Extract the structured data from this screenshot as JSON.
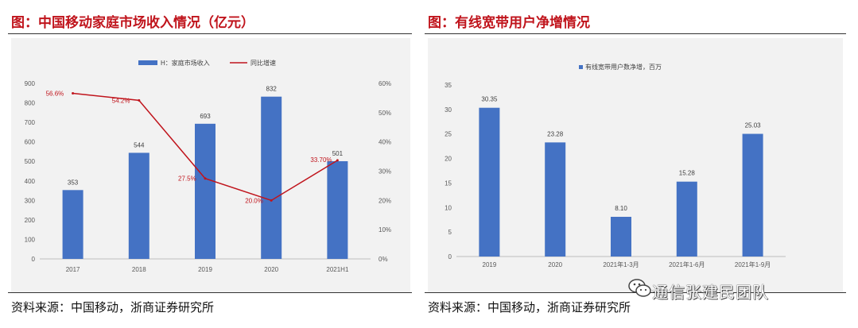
{
  "left": {
    "title": "图：中国移动家庭市场收入情况（亿元）",
    "source": "资料来源：中国移动，浙商证券研究所"
  },
  "right": {
    "title": "图：有线宽带用户净增情况",
    "source": "资料来源：中国移动，浙商证券研究所"
  },
  "watermark": {
    "text": "通信张建民团队",
    "icon": "wechat-icon"
  },
  "colors": {
    "bar": "#4472c4",
    "line": "#c0141c",
    "title": "#c0141c",
    "frame": "#f2f2f2"
  },
  "chart_data": [
    {
      "type": "bar",
      "categories": [
        "2017",
        "2018",
        "2019",
        "2020",
        "2021H1"
      ],
      "series": [
        {
          "name": "H：家庭市场收入",
          "values": [
            353,
            544,
            693,
            832,
            501
          ],
          "labels": [
            "353",
            "544",
            "693",
            "832",
            "501"
          ],
          "axis": "left"
        },
        {
          "name": "同比增速",
          "type": "line",
          "values": [
            56.6,
            54.2,
            27.5,
            20.0,
            33.7
          ],
          "labels": [
            "56.6%",
            "54.2%",
            "27.5%",
            "20.0%",
            "33.70%"
          ],
          "axis": "right"
        }
      ],
      "ylim": [
        0,
        900
      ],
      "yticks": [
        "0",
        "100",
        "200",
        "300",
        "400",
        "500",
        "600",
        "700",
        "800",
        "900"
      ],
      "y2lim": [
        0,
        60
      ],
      "y2ticks": [
        "0%",
        "10%",
        "20%",
        "30%",
        "40%",
        "50%",
        "60%"
      ],
      "legend": "top-center",
      "grid": false
    },
    {
      "type": "bar",
      "categories": [
        "2019",
        "2020",
        "2021年1-3月",
        "2021年1-6月",
        "2021年1-9月"
      ],
      "series": [
        {
          "name": "有线宽带用户数净增，百万",
          "values": [
            30.35,
            23.28,
            8.1,
            15.28,
            25.03
          ],
          "labels": [
            "30.35",
            "23.28",
            "8.10",
            "15.28",
            "25.03"
          ]
        }
      ],
      "ylim": [
        0,
        35
      ],
      "yticks": [
        "0",
        "5",
        "10",
        "15",
        "20",
        "25",
        "30",
        "35"
      ],
      "legend": "top-center",
      "grid": false
    }
  ]
}
